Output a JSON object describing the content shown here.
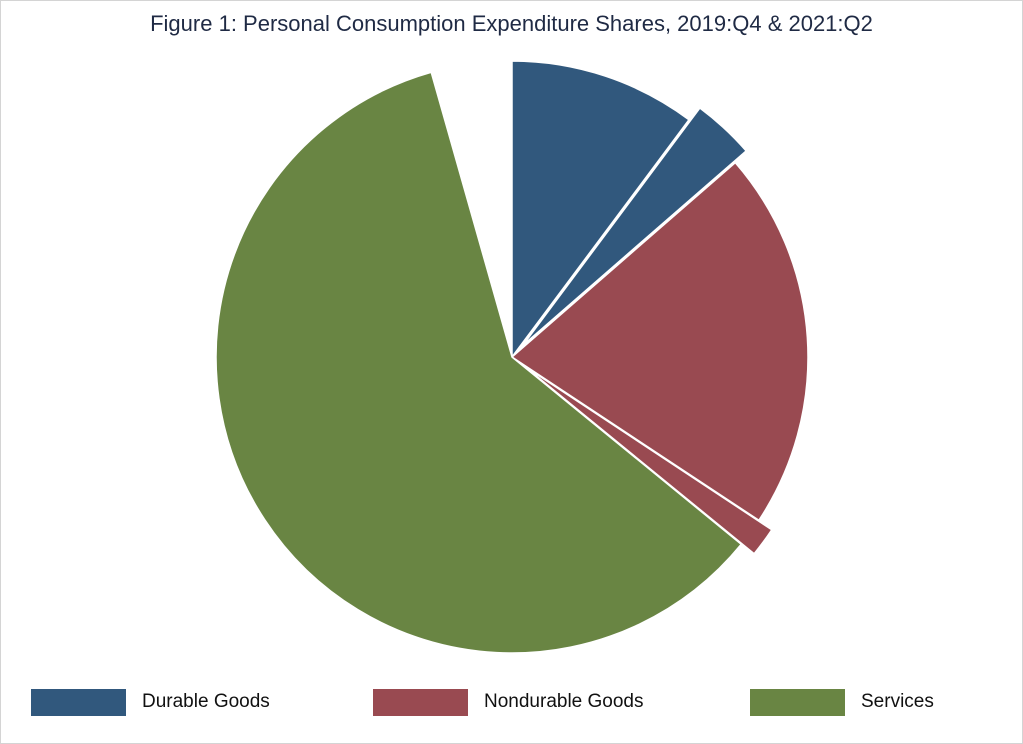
{
  "chart_data": {
    "type": "pie",
    "title": "Figure 1: Personal Consumption Expenditure Shares, 2019:Q4 & 2021:Q2",
    "categories": [
      "Durable Goods",
      "Nondurable Goods",
      "Services"
    ],
    "colors": {
      "Durable Goods": "#31587d",
      "Nondurable Goods": "#994a51",
      "Services": "#698543"
    },
    "slices": [
      {
        "category": "Durable Goods",
        "value": 10.2,
        "exploded": false
      },
      {
        "category": "Durable Goods",
        "value": 3.4,
        "exploded": true
      },
      {
        "category": "Nondurable Goods",
        "value": 20.7,
        "exploded": false
      },
      {
        "category": "Nondurable Goods",
        "value": 1.6,
        "exploded": true
      },
      {
        "category": "Services",
        "value": 59.7,
        "exploded": false
      },
      {
        "category": "",
        "value": 4.4,
        "blank": true
      }
    ],
    "legend_position": "bottom"
  }
}
